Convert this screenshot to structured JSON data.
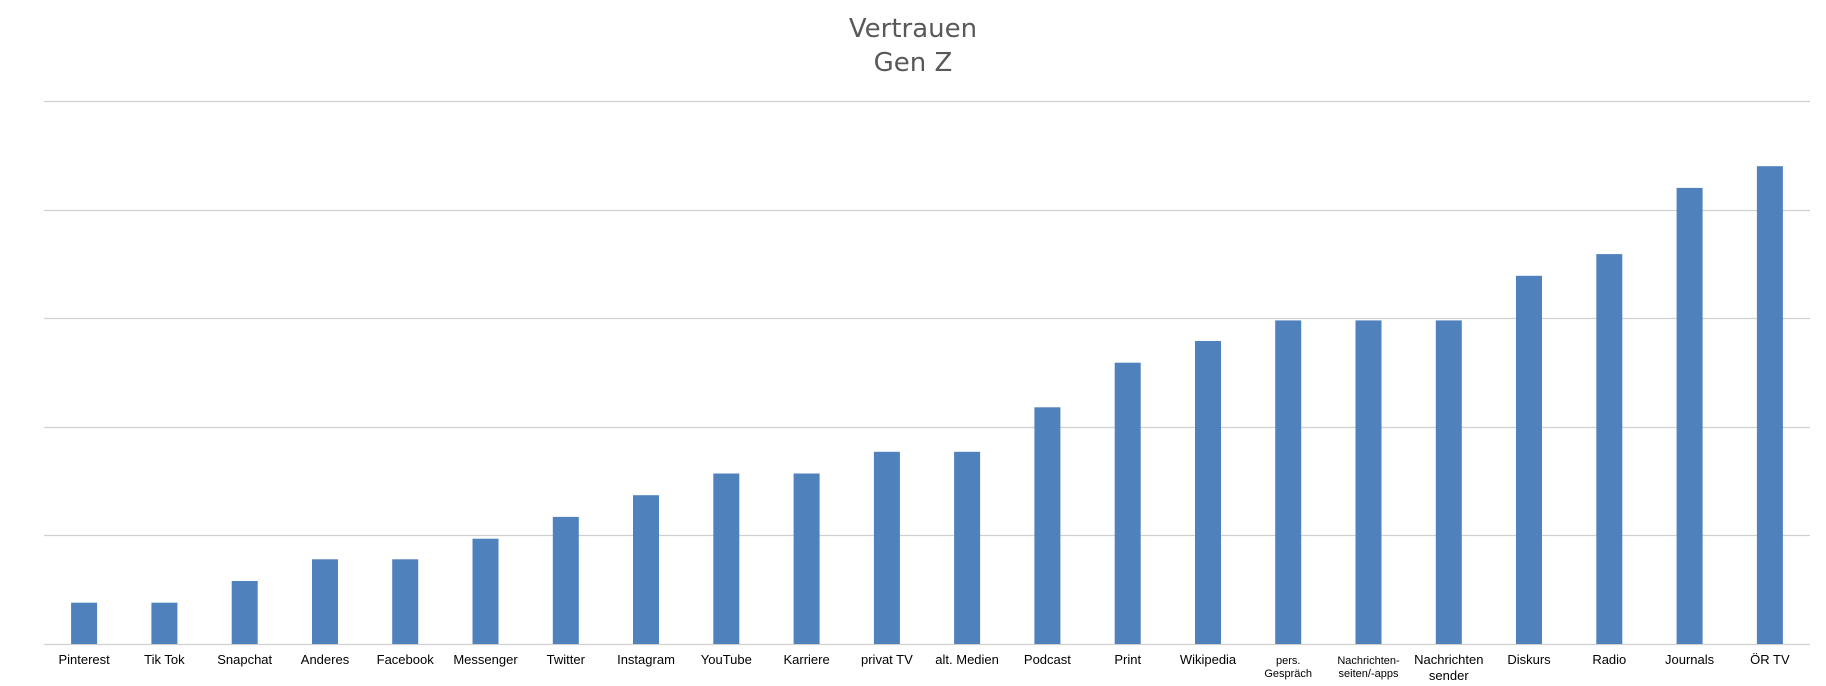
{
  "chart_data": {
    "type": "bar",
    "title_lines": [
      "Vertrauen",
      "Gen Z"
    ],
    "xlabel": "",
    "ylabel": "",
    "categories": [
      "Pinterest",
      "Tik Tok",
      "Snapchat",
      "Anderes",
      "Facebook",
      "Messenger",
      "Twitter",
      "Instagram",
      "YouTube",
      "Karriere",
      "privat TV",
      "alt. Medien",
      "Podcast",
      "Print",
      "Wikipedia",
      "pers. Gespräch",
      "Nachrichten-seiten/-apps",
      "Nachrichten sender",
      "Diskurs",
      "Radio",
      "Journals",
      "ÖR TV"
    ],
    "category_lines": [
      [
        "Pinterest"
      ],
      [
        "Tik Tok"
      ],
      [
        "Snapchat"
      ],
      [
        "Anderes"
      ],
      [
        "Facebook"
      ],
      [
        "Messenger"
      ],
      [
        "Twitter"
      ],
      [
        "Instagram"
      ],
      [
        "YouTube"
      ],
      [
        "Karriere"
      ],
      [
        "privat TV"
      ],
      [
        "alt. Medien"
      ],
      [
        "Podcast"
      ],
      [
        "Print"
      ],
      [
        "Wikipedia"
      ],
      [
        "pers.",
        "Gespräch"
      ],
      [
        "Nachrichten-",
        "seiten/-apps"
      ],
      [
        "Nachrichten",
        "sender"
      ],
      [
        "Diskurs"
      ],
      [
        "Radio"
      ],
      [
        "Journals"
      ],
      [
        "ÖR TV"
      ]
    ],
    "small_label_indices": [
      15,
      16
    ],
    "values": [
      0.38,
      0.38,
      0.58,
      0.78,
      0.78,
      0.97,
      1.17,
      1.37,
      1.57,
      1.57,
      1.77,
      1.77,
      2.18,
      2.59,
      2.79,
      2.98,
      2.98,
      2.98,
      3.39,
      3.59,
      4.2,
      4.4
    ],
    "ylim": [
      0,
      5
    ],
    "y_gridlines": [
      1,
      2,
      3,
      4,
      5
    ],
    "y_tick_labels_shown": false,
    "grid": true,
    "legend": "none",
    "bar_color": "#4f81bd",
    "grid_color": "#d0d0d0"
  }
}
